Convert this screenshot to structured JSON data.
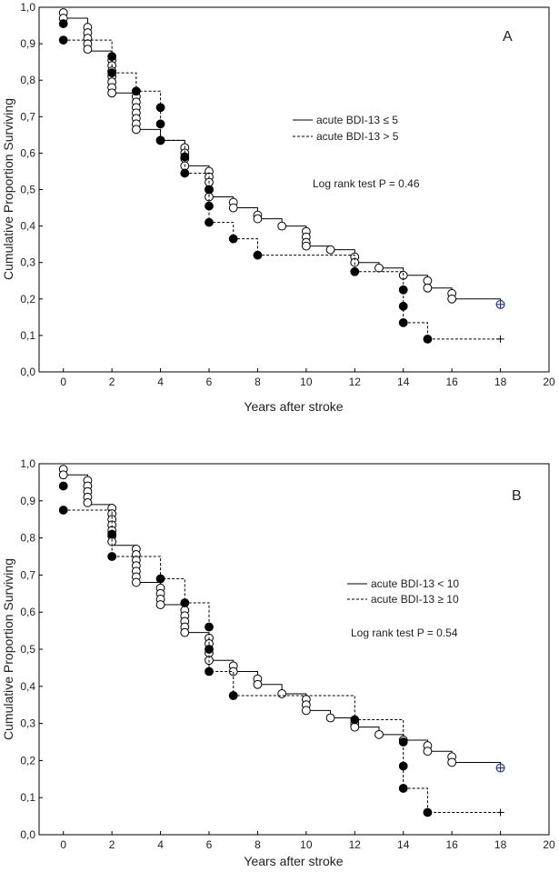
{
  "chart_data": [
    {
      "type": "line",
      "panel_label": "A",
      "xlabel": "Years after stroke",
      "ylabel": "Cumulative Proportion Surviving",
      "xlim": [
        -1,
        20
      ],
      "ylim": [
        0,
        1
      ],
      "x_ticks": [
        0,
        2,
        4,
        6,
        8,
        10,
        12,
        14,
        16,
        18,
        20
      ],
      "y_ticks": [
        "0,0",
        "0,1",
        "0,2",
        "0,3",
        "0,4",
        "0,5",
        "0,6",
        "0,7",
        "0,8",
        "0,9",
        "1,0"
      ],
      "legend_position": "top-right",
      "annotation": "Log rank test P = 0.46",
      "series": [
        {
          "name": "acute BDI-13 ≤ 5",
          "style": "solid",
          "marker": "open-circle",
          "steps": [
            [
              0,
              0.97
            ],
            [
              1,
              0.88
            ],
            [
              2,
              0.765
            ],
            [
              3,
              0.665
            ],
            [
              4,
              0.635
            ],
            [
              5,
              0.565
            ],
            [
              6,
              0.48
            ],
            [
              7,
              0.45
            ],
            [
              8,
              0.42
            ],
            [
              9,
              0.4
            ],
            [
              10,
              0.345
            ],
            [
              11,
              0.335
            ],
            [
              12,
              0.3
            ],
            [
              13,
              0.285
            ],
            [
              14,
              0.265
            ],
            [
              15,
              0.23
            ],
            [
              16,
              0.2
            ],
            [
              18,
              0.185
            ]
          ],
          "events": [
            [
              0,
              0.985
            ],
            [
              0,
              0.97
            ],
            [
              1,
              0.945
            ],
            [
              1,
              0.93
            ],
            [
              1,
              0.915
            ],
            [
              1,
              0.9
            ],
            [
              1,
              0.885
            ],
            [
              2,
              0.855
            ],
            [
              2,
              0.84
            ],
            [
              2,
              0.825
            ],
            [
              2,
              0.81
            ],
            [
              2,
              0.795
            ],
            [
              2,
              0.78
            ],
            [
              2,
              0.765
            ],
            [
              3,
              0.755
            ],
            [
              3,
              0.74
            ],
            [
              3,
              0.725
            ],
            [
              3,
              0.71
            ],
            [
              3,
              0.695
            ],
            [
              3,
              0.68
            ],
            [
              3,
              0.665
            ],
            [
              4,
              0.635
            ],
            [
              5,
              0.615
            ],
            [
              5,
              0.6
            ],
            [
              5,
              0.585
            ],
            [
              5,
              0.565
            ],
            [
              6,
              0.55
            ],
            [
              6,
              0.535
            ],
            [
              6,
              0.52
            ],
            [
              6,
              0.5
            ],
            [
              6,
              0.48
            ],
            [
              7,
              0.465
            ],
            [
              7,
              0.45
            ],
            [
              8,
              0.43
            ],
            [
              8,
              0.42
            ],
            [
              9,
              0.4
            ],
            [
              10,
              0.385
            ],
            [
              10,
              0.37
            ],
            [
              10,
              0.355
            ],
            [
              10,
              0.345
            ],
            [
              11,
              0.335
            ],
            [
              12,
              0.315
            ],
            [
              12,
              0.3
            ],
            [
              13,
              0.285
            ],
            [
              14,
              0.265
            ],
            [
              15,
              0.25
            ],
            [
              15,
              0.23
            ],
            [
              16,
              0.215
            ],
            [
              16,
              0.2
            ]
          ],
          "censored": [
            [
              18,
              0.185
            ]
          ]
        },
        {
          "name": "acute BDI-13 > 5",
          "style": "dashed",
          "marker": "filled-circle",
          "steps": [
            [
              0,
              0.91
            ],
            [
              2,
              0.82
            ],
            [
              3,
              0.77
            ],
            [
              4,
              0.635
            ],
            [
              5,
              0.545
            ],
            [
              6,
              0.41
            ],
            [
              7,
              0.365
            ],
            [
              8,
              0.32
            ],
            [
              12,
              0.275
            ],
            [
              14,
              0.135
            ],
            [
              15,
              0.09
            ],
            [
              18,
              0.09
            ]
          ],
          "events": [
            [
              0,
              0.955
            ],
            [
              0,
              0.91
            ],
            [
              2,
              0.865
            ],
            [
              2,
              0.82
            ],
            [
              3,
              0.77
            ],
            [
              4,
              0.725
            ],
            [
              4,
              0.68
            ],
            [
              4,
              0.635
            ],
            [
              5,
              0.59
            ],
            [
              5,
              0.545
            ],
            [
              6,
              0.5
            ],
            [
              6,
              0.455
            ],
            [
              6,
              0.41
            ],
            [
              7,
              0.365
            ],
            [
              8,
              0.32
            ],
            [
              12,
              0.275
            ],
            [
              14,
              0.225
            ],
            [
              14,
              0.18
            ],
            [
              14,
              0.135
            ],
            [
              15,
              0.09
            ]
          ],
          "censored": [
            [
              18,
              0.09
            ]
          ]
        }
      ]
    },
    {
      "type": "line",
      "panel_label": "B",
      "xlabel": "Years after stroke",
      "ylabel": "Cumulative Proportion Surviving",
      "xlim": [
        -1,
        20
      ],
      "ylim": [
        0,
        1
      ],
      "x_ticks": [
        0,
        2,
        4,
        6,
        8,
        10,
        12,
        14,
        16,
        18,
        20
      ],
      "y_ticks": [
        "0,0",
        "0,1",
        "0,2",
        "0,3",
        "0,4",
        "0,5",
        "0,6",
        "0,7",
        "0,8",
        "0,9",
        "1,0"
      ],
      "legend_position": "right",
      "annotation": "Log rank test P = 0.54",
      "series": [
        {
          "name": "acute BDI-13 < 10",
          "style": "solid",
          "marker": "open-circle",
          "steps": [
            [
              0,
              0.97
            ],
            [
              1,
              0.89
            ],
            [
              2,
              0.78
            ],
            [
              3,
              0.68
            ],
            [
              4,
              0.62
            ],
            [
              5,
              0.545
            ],
            [
              6,
              0.47
            ],
            [
              7,
              0.44
            ],
            [
              8,
              0.405
            ],
            [
              9,
              0.38
            ],
            [
              10,
              0.335
            ],
            [
              11,
              0.315
            ],
            [
              12,
              0.29
            ],
            [
              13,
              0.27
            ],
            [
              14,
              0.255
            ],
            [
              15,
              0.225
            ],
            [
              16,
              0.195
            ],
            [
              18,
              0.18
            ]
          ],
          "events": [
            [
              0,
              0.985
            ],
            [
              0,
              0.97
            ],
            [
              1,
              0.955
            ],
            [
              1,
              0.94
            ],
            [
              1,
              0.925
            ],
            [
              1,
              0.91
            ],
            [
              1,
              0.895
            ],
            [
              2,
              0.88
            ],
            [
              2,
              0.865
            ],
            [
              2,
              0.85
            ],
            [
              2,
              0.835
            ],
            [
              2,
              0.82
            ],
            [
              2,
              0.805
            ],
            [
              2,
              0.79
            ],
            [
              3,
              0.77
            ],
            [
              3,
              0.755
            ],
            [
              3,
              0.74
            ],
            [
              3,
              0.725
            ],
            [
              3,
              0.71
            ],
            [
              3,
              0.695
            ],
            [
              3,
              0.68
            ],
            [
              4,
              0.665
            ],
            [
              4,
              0.65
            ],
            [
              4,
              0.635
            ],
            [
              4,
              0.62
            ],
            [
              5,
              0.605
            ],
            [
              5,
              0.59
            ],
            [
              5,
              0.575
            ],
            [
              5,
              0.56
            ],
            [
              5,
              0.545
            ],
            [
              6,
              0.53
            ],
            [
              6,
              0.515
            ],
            [
              6,
              0.49
            ],
            [
              6,
              0.47
            ],
            [
              7,
              0.455
            ],
            [
              7,
              0.44
            ],
            [
              8,
              0.42
            ],
            [
              8,
              0.405
            ],
            [
              9,
              0.38
            ],
            [
              10,
              0.365
            ],
            [
              10,
              0.35
            ],
            [
              10,
              0.335
            ],
            [
              11,
              0.315
            ],
            [
              12,
              0.3
            ],
            [
              12,
              0.29
            ],
            [
              13,
              0.27
            ],
            [
              14,
              0.255
            ],
            [
              15,
              0.24
            ],
            [
              15,
              0.225
            ],
            [
              16,
              0.21
            ],
            [
              16,
              0.195
            ]
          ],
          "censored": [
            [
              18,
              0.18
            ]
          ]
        },
        {
          "name": "acute BDI-13 ≥ 10",
          "style": "dashed",
          "marker": "filled-circle",
          "steps": [
            [
              0,
              0.875
            ],
            [
              2,
              0.75
            ],
            [
              4,
              0.69
            ],
            [
              5,
              0.625
            ],
            [
              6,
              0.44
            ],
            [
              7,
              0.375
            ],
            [
              12,
              0.31
            ],
            [
              14,
              0.125
            ],
            [
              15,
              0.06
            ],
            [
              18,
              0.06
            ]
          ],
          "events": [
            [
              0,
              0.94
            ],
            [
              0,
              0.875
            ],
            [
              2,
              0.81
            ],
            [
              2,
              0.75
            ],
            [
              4,
              0.69
            ],
            [
              5,
              0.625
            ],
            [
              6,
              0.56
            ],
            [
              6,
              0.5
            ],
            [
              6,
              0.44
            ],
            [
              7,
              0.375
            ],
            [
              12,
              0.31
            ],
            [
              14,
              0.25
            ],
            [
              14,
              0.185
            ],
            [
              14,
              0.125
            ],
            [
              15,
              0.06
            ]
          ],
          "censored": [
            [
              18,
              0.06
            ]
          ]
        }
      ]
    }
  ]
}
